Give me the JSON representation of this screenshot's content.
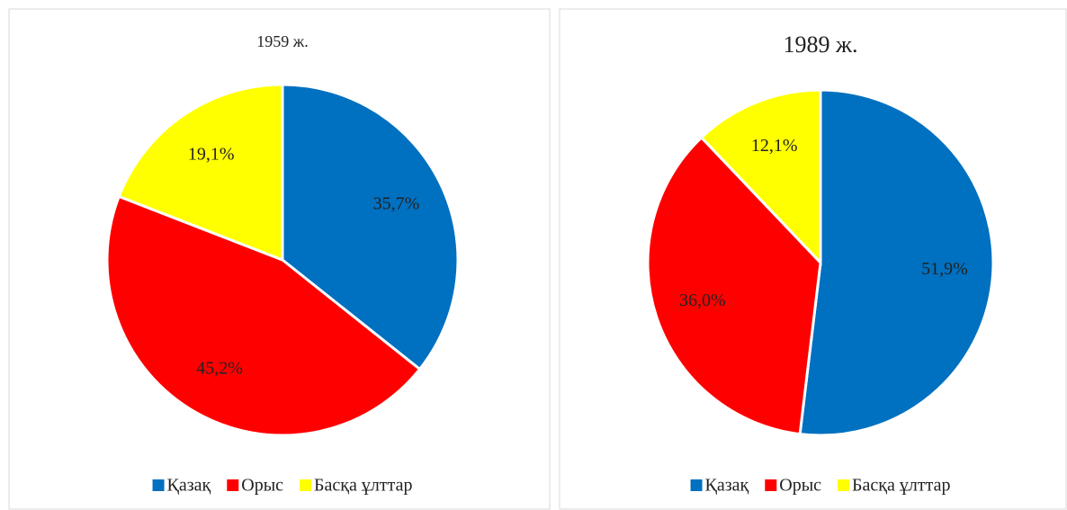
{
  "chart_data": [
    {
      "type": "pie",
      "title": "1959 ж.",
      "categories": [
        "Қазақ",
        "Орыс",
        "Басқа ұлттар"
      ],
      "values": [
        35.7,
        45.2,
        19.1
      ],
      "value_labels": [
        "35,7%",
        "45,2%",
        "19,1%"
      ],
      "colors": [
        "#0070c0",
        "#ff0000",
        "#ffff00"
      ],
      "legend": "bottom"
    },
    {
      "type": "pie",
      "title": "1989 ж.",
      "categories": [
        "Қазақ",
        "Орыс",
        "Басқа ұлттар"
      ],
      "values": [
        51.9,
        36.0,
        12.1
      ],
      "value_labels": [
        "51,9%",
        "36,0%",
        "12,1%"
      ],
      "colors": [
        "#0070c0",
        "#ff0000",
        "#ffff00"
      ],
      "legend": "bottom"
    }
  ]
}
